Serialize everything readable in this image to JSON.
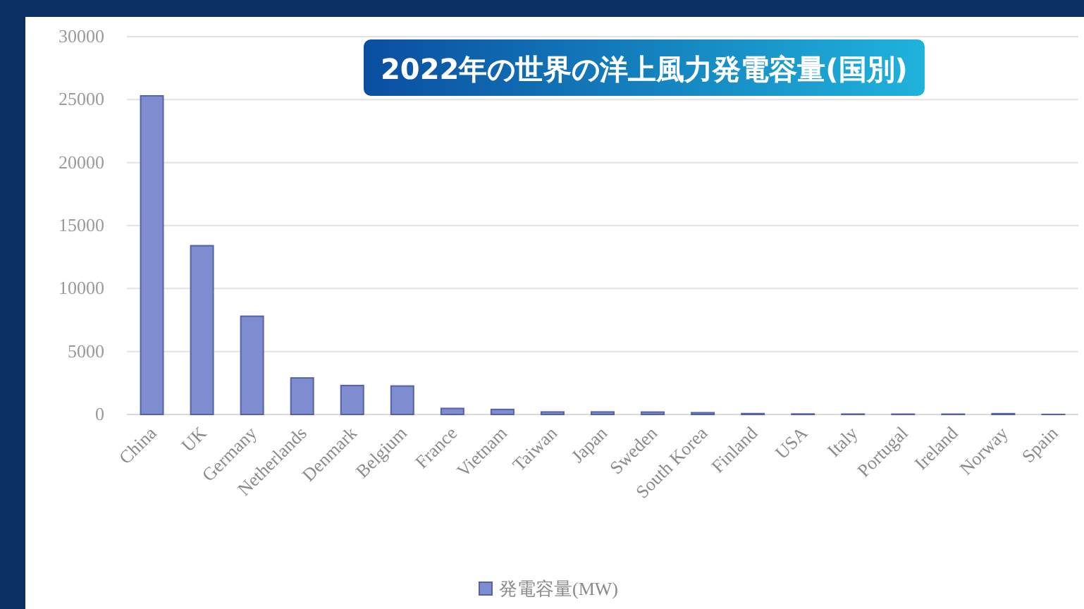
{
  "chart_data": {
    "type": "bar",
    "title": "2022年の世界の洋上風力発電容量(国別)",
    "categories": [
      "China",
      "UK",
      "Germany",
      "Netherlands",
      "Denmark",
      "Belgium",
      "France",
      "Vietnam",
      "Taiwan",
      "Japan",
      "Sweden",
      "South Korea",
      "Finland",
      "USA",
      "Italy",
      "Portugal",
      "Ireland",
      "Norway",
      "Spain"
    ],
    "series": [
      {
        "name": "発電容量(MW)",
        "color": "#7f8cd0",
        "values": [
          25300,
          13400,
          7800,
          2900,
          2300,
          2260,
          480,
          400,
          200,
          200,
          190,
          140,
          70,
          40,
          30,
          25,
          25,
          66,
          5
        ]
      }
    ],
    "ylim": [
      0,
      30000
    ],
    "yticks": [
      0,
      5000,
      10000,
      15000,
      20000,
      25000,
      30000
    ],
    "grid": "y",
    "legend": "bottom"
  }
}
